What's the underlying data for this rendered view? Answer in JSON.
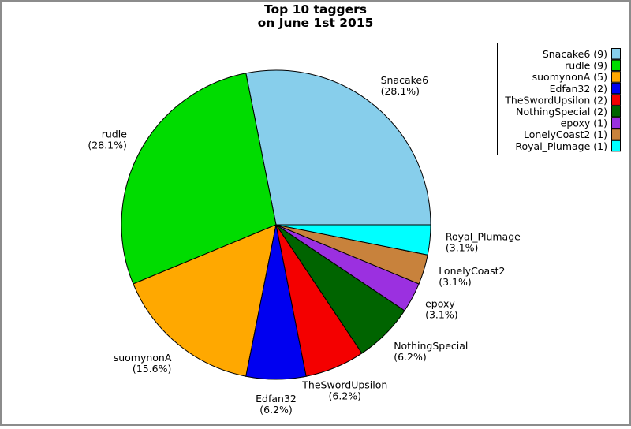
{
  "frame": {
    "background": "#ffffff",
    "border_color": "#8c8c8c"
  },
  "title": {
    "line1": "Top 10 taggers",
    "line2": "on June 1st 2015"
  },
  "chart_data": {
    "type": "pie",
    "title": "Top 10 taggers on June 1st 2015",
    "total": 32,
    "start_angle_deg": 0,
    "direction": "counterclockwise",
    "legend_position": "top-right",
    "outline_color": "#000000",
    "slices": [
      {
        "name": "Snacake6",
        "value": 9,
        "percent_label": "28.1%",
        "legend_label": "Snacake6 (9)",
        "color": "#87CEEB"
      },
      {
        "name": "rudle",
        "value": 9,
        "percent_label": "28.1%",
        "legend_label": "rudle (9)",
        "color": "#00DC00"
      },
      {
        "name": "suomynonA",
        "value": 5,
        "percent_label": "15.6%",
        "legend_label": "suomynonA (5)",
        "color": "#FFA800"
      },
      {
        "name": "Edfan32",
        "value": 2,
        "percent_label": "6.2%",
        "legend_label": "Edfan32 (2)",
        "color": "#0000F0"
      },
      {
        "name": "TheSwordUpsilon",
        "value": 2,
        "percent_label": "6.2%",
        "legend_label": "TheSwordUpsilon (2)",
        "color": "#F40000"
      },
      {
        "name": "NothingSpecial",
        "value": 2,
        "percent_label": "6.2%",
        "legend_label": "NothingSpecial (2)",
        "color": "#006400"
      },
      {
        "name": "epoxy",
        "value": 1,
        "percent_label": "3.1%",
        "legend_label": "epoxy (1)",
        "color": "#9B30E0"
      },
      {
        "name": "LonelyCoast2",
        "value": 1,
        "percent_label": "3.1%",
        "legend_label": "LonelyCoast2 (1)",
        "color": "#C8823C"
      },
      {
        "name": "Royal_Plumage",
        "value": 1,
        "percent_label": "3.1%",
        "legend_label": "Royal_Plumage (1)",
        "color": "#00FFFF"
      }
    ]
  }
}
